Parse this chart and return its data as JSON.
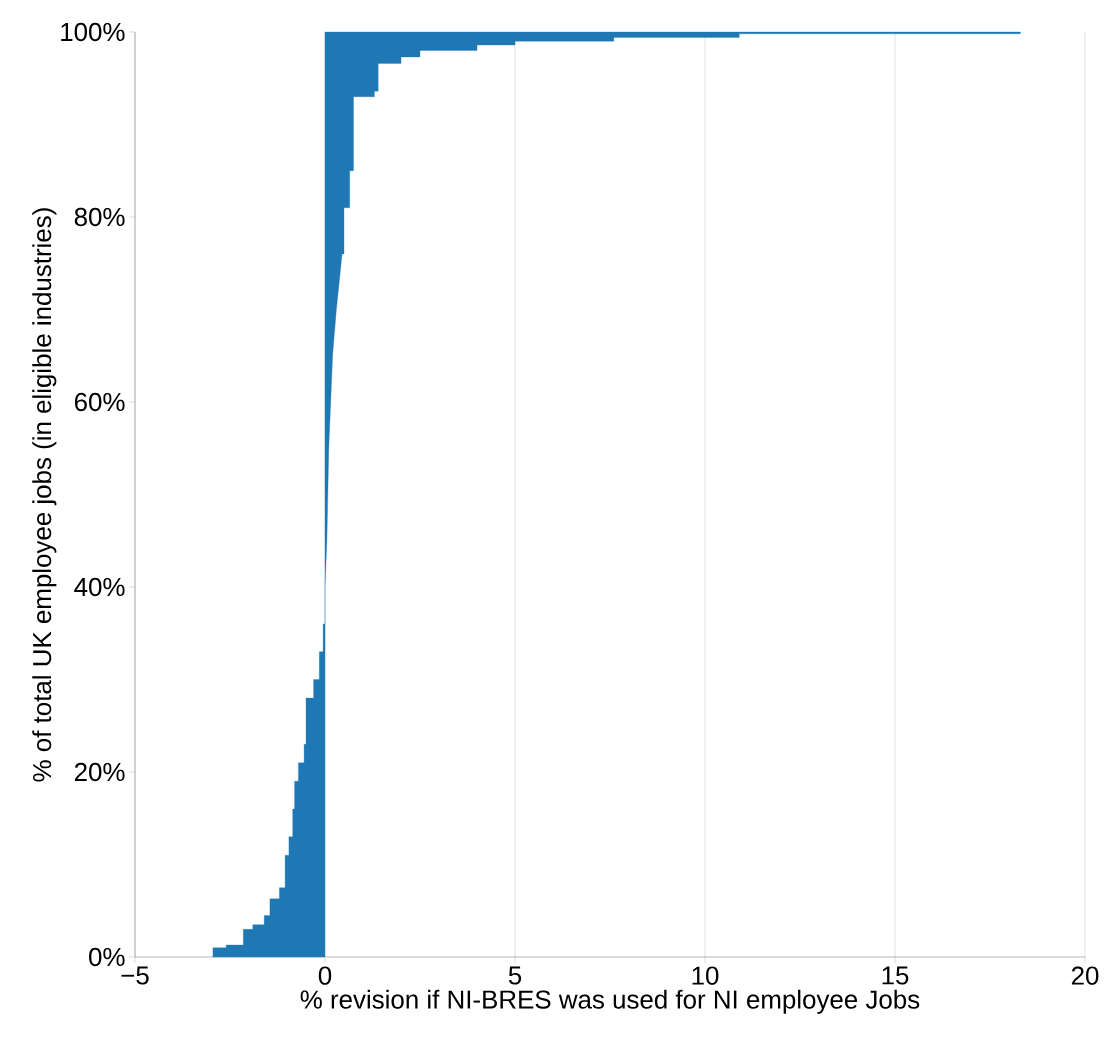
{
  "chart_data": {
    "type": "area",
    "xlabel": "% revision if NI-BRES was used for NI employee Jobs",
    "ylabel": "% of total UK employee jobs (in eligible industries)",
    "series": [
      {
        "color": "#1f77b4",
        "x": [
          0,
          -2.95,
          -2.95,
          -2.6,
          -2.6,
          -2.15,
          -2.15,
          -1.9,
          -1.9,
          -1.6,
          -1.6,
          -1.45,
          -1.45,
          -1.2,
          -1.2,
          -1.05,
          -1.05,
          -0.95,
          -0.95,
          -0.85,
          -0.85,
          -0.8,
          -0.8,
          -0.7,
          -0.7,
          -0.55,
          -0.55,
          -0.5,
          -0.5,
          -0.3,
          -0.3,
          -0.15,
          -0.15,
          -0.05,
          -0.05,
          0,
          0,
          0.05,
          0.1,
          0.15,
          0.2,
          0.3,
          0.45,
          0.5,
          0.5,
          0.65,
          0.65,
          0.75,
          0.75,
          1.3,
          1.3,
          1.4,
          1.4,
          2.0,
          2.0,
          2.5,
          2.5,
          4.0,
          4.0,
          5.0,
          5.0,
          7.6,
          7.6,
          10.9,
          10.9,
          18.3,
          18.3,
          0
        ],
        "values": [
          0,
          0,
          1,
          1,
          1.3,
          1.3,
          3,
          3,
          3.5,
          3.5,
          4.5,
          4.5,
          6.3,
          6.3,
          7.5,
          7.5,
          11,
          11,
          13,
          13,
          16,
          16,
          19,
          19,
          21,
          21,
          23,
          23,
          28,
          28,
          30,
          30,
          33,
          33,
          36,
          36,
          40,
          45,
          55,
          60,
          65,
          70,
          76,
          76,
          81,
          81,
          85,
          85,
          93,
          93,
          93.6,
          93.6,
          96.6,
          96.6,
          97.3,
          97.3,
          98,
          98,
          98.6,
          98.6,
          99,
          99,
          99.4,
          99.4,
          99.8,
          99.8,
          100,
          100
        ]
      }
    ],
    "xlim": [
      -5,
      20
    ],
    "xticks": [
      {
        "value": -5,
        "label": "−5"
      },
      0,
      5,
      10,
      15,
      20
    ],
    "ylim": [
      0,
      100
    ],
    "yticks": [
      {
        "value": 0,
        "label": "0%"
      },
      {
        "value": 20,
        "label": "20%"
      },
      {
        "value": 40,
        "label": "40%"
      },
      {
        "value": 60,
        "label": "60%"
      },
      {
        "value": 80,
        "label": "80%"
      },
      {
        "value": 100,
        "label": "100%"
      }
    ],
    "grid": "x"
  }
}
